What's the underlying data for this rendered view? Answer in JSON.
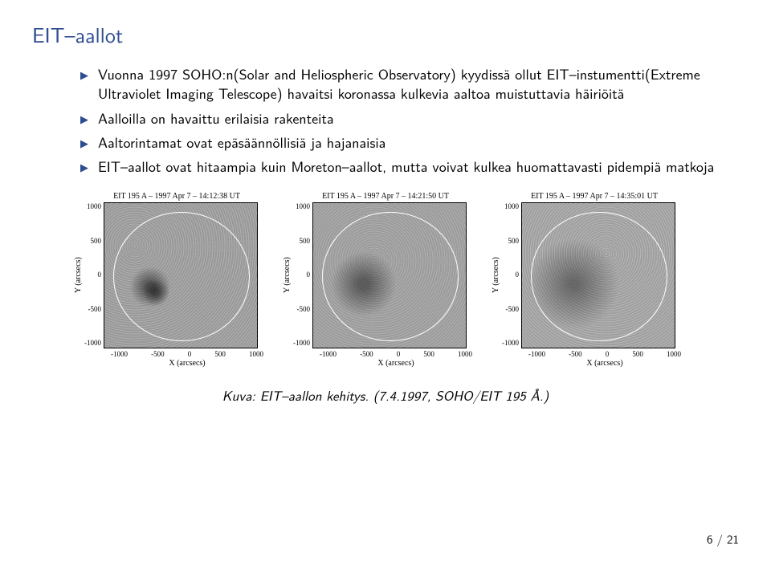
{
  "title": "EIT–aallot",
  "bullets": [
    "Vuonna 1997 SOHO:n(Solar and Heliospheric Observatory) kyydissä ollut EIT–instumentti(Extreme Ultraviolet Imaging Telescope) havaitsi koronassa kulkevia aaltoa muistuttavia häiriöitä",
    "Aalloilla on havaittu erilaisia rakenteita",
    "Aaltorintamat ovat epäsäännöllisiä ja hajanaisia",
    "EIT–aallot ovat hitaampia kuin Moreton–aallot, mutta voivat kulkea huomattavasti pidempiä matkoja"
  ],
  "colors": {
    "accent": "#2f4d8f",
    "text": "#000000",
    "background": "#ffffff",
    "noise_base": "#8a8a8a",
    "disk_outline": "#ffffff"
  },
  "charts": [
    {
      "title": "EIT 195 A – 1997 Apr 7 – 14:12:38 UT",
      "xlabel": "X (arcsecs)",
      "ylabel": "Y (arcsecs)",
      "xlim": [
        -1000,
        1000
      ],
      "ylim": [
        -1000,
        1000
      ],
      "xticks": [
        "-1000",
        "-500",
        "0",
        "500",
        "1000"
      ],
      "yticks": [
        "1000",
        "500",
        "0",
        "-500",
        "-1000"
      ],
      "tick_fontsize": 9,
      "label_fontsize": 10,
      "title_fontsize": 10
    },
    {
      "title": "EIT 195 A – 1997 Apr 7 – 14:21:50 UT",
      "xlabel": "X (arcsecs)",
      "ylabel": "Y (arcsecs)",
      "xlim": [
        -1000,
        1000
      ],
      "ylim": [
        -1000,
        1000
      ],
      "xticks": [
        "-1000",
        "-500",
        "0",
        "500",
        "1000"
      ],
      "yticks": [
        "1000",
        "500",
        "0",
        "-500",
        "-1000"
      ],
      "tick_fontsize": 9,
      "label_fontsize": 10,
      "title_fontsize": 10
    },
    {
      "title": "EIT 195 A – 1997 Apr 7 – 14:35:01 UT",
      "xlabel": "X (arcsecs)",
      "ylabel": "Y (arcsecs)",
      "xlim": [
        -1000,
        1000
      ],
      "ylim": [
        -1000,
        1000
      ],
      "xticks": [
        "-1000",
        "-500",
        "0",
        "500",
        "1000"
      ],
      "yticks": [
        "1000",
        "500",
        "0",
        "-500",
        "-1000"
      ],
      "tick_fontsize": 9,
      "label_fontsize": 10,
      "title_fontsize": 10
    }
  ],
  "caption": "Kuva: EIT–aallon kehitys. (7.4.1997, SOHO/EIT 195 Å.)",
  "footer": "6 / 21"
}
